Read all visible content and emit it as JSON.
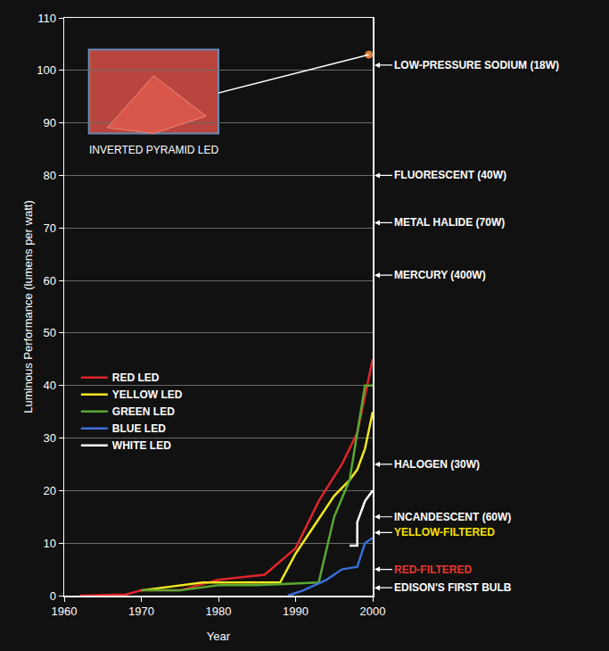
{
  "chart_data": {
    "type": "line",
    "x_label": "Year",
    "y_label": "Luminous Performance (lumens per watt)",
    "xlim": [
      1960,
      2000
    ],
    "xticks": [
      1960,
      1970,
      1980,
      1990,
      2000
    ],
    "ylim": [
      0,
      110
    ],
    "yticks": [
      0,
      10,
      20,
      30,
      40,
      50,
      60,
      70,
      80,
      90,
      100,
      110
    ],
    "grid": true,
    "legend": "lower left",
    "series": [
      {
        "name": "RED LED",
        "color": "#e0252b",
        "x": [
          1962,
          1968,
          1970,
          1975,
          1980,
          1986,
          1990,
          1993,
          1996,
          1998,
          1999,
          2000
        ],
        "values": [
          0,
          0.2,
          1,
          1,
          3,
          4,
          9,
          18,
          25,
          31,
          38,
          45
        ]
      },
      {
        "name": "YELLOW LED",
        "color": "#f0e81e",
        "x": [
          1970,
          1978,
          1988,
          1990,
          1995,
          1997,
          1998,
          1999,
          2000
        ],
        "values": [
          1,
          2.5,
          2.5,
          8,
          19,
          22,
          24,
          28,
          35
        ]
      },
      {
        "name": "GREEN LED",
        "color": "#5aa832",
        "x": [
          1970,
          1975,
          1980,
          1985,
          1993,
          1995,
          1997,
          1999,
          2000
        ],
        "values": [
          1,
          1,
          2,
          2,
          2.5,
          15,
          22,
          40,
          40
        ]
      },
      {
        "name": "BLUE LED",
        "color": "#3a6fd8",
        "x": [
          1989,
          1991,
          1994,
          1996,
          1998,
          1999,
          2000
        ],
        "values": [
          0,
          1,
          3,
          5,
          5.5,
          10,
          11
        ]
      },
      {
        "name": "WHITE LED",
        "color": "#ffffff",
        "x": [
          1997,
          1998,
          1998,
          1999,
          2000
        ],
        "values": [
          9.5,
          9.5,
          14,
          18,
          20
        ]
      }
    ],
    "highlight": {
      "label": "INVERTED PYRAMID LED",
      "x": 1999.5,
      "y": 103,
      "color": "#e07a3a"
    },
    "reference_levels": [
      {
        "label": "LOW-PRESSURE SODIUM (18W)",
        "value": 101,
        "color": "#ffffff"
      },
      {
        "label": "FLUORESCENT (40W)",
        "value": 80,
        "color": "#ffffff"
      },
      {
        "label": "METAL HALIDE (70W)",
        "value": 71,
        "color": "#ffffff"
      },
      {
        "label": "MERCURY (400W)",
        "value": 61,
        "color": "#ffffff"
      },
      {
        "label": "HALOGEN (30W)",
        "value": 25,
        "color": "#ffffff"
      },
      {
        "label": "INCANDESCENT (60W)",
        "value": 15,
        "color": "#ffffff"
      },
      {
        "label": "YELLOW-FILTERED",
        "value": 12,
        "color": "#f5e100"
      },
      {
        "label": "RED-FILTERED",
        "value": 5,
        "color": "#e8382d"
      },
      {
        "label": "EDISON'S FIRST BULB",
        "value": 1.5,
        "color": "#ffffff"
      }
    ]
  }
}
